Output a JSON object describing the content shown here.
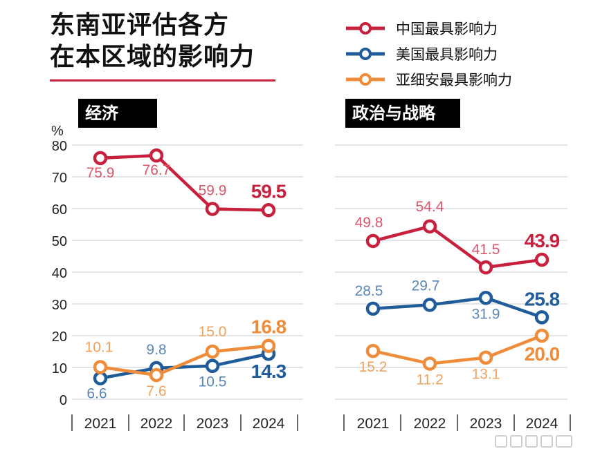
{
  "title_lines": [
    "东南亚评估各方",
    "在本区域的影响力"
  ],
  "colors": {
    "china": "#c8213d",
    "us": "#1f5c99",
    "australia": "#ef8c3a",
    "title_rule": "#c8213d",
    "grid": "#cfd4d9"
  },
  "chart_data": [
    {
      "type": "line",
      "panel_label": "经济",
      "ylabel": "%",
      "yticks": [
        0,
        10,
        20,
        30,
        40,
        50,
        60,
        70,
        80
      ],
      "ylim": [
        0,
        80
      ],
      "grid": true,
      "legend_position": "top-right",
      "x": [
        "2021",
        "2022",
        "2023",
        "2024"
      ],
      "series": [
        {
          "key": "china",
          "name": "中国最具影响力",
          "values": [
            75.9,
            76.7,
            59.9,
            59.5
          ],
          "labels": [
            "75.9",
            "76.7",
            "59.9",
            "59.5"
          ]
        },
        {
          "key": "us",
          "name": "美国最具影响力",
          "values": [
            6.6,
            9.8,
            10.5,
            14.3
          ],
          "labels": [
            "6.6",
            "9.8",
            "10.5",
            "14.3"
          ]
        },
        {
          "key": "australia",
          "name": "亚细安最具影响力",
          "values": [
            10.1,
            7.6,
            15.0,
            16.8
          ],
          "labels": [
            "10.1",
            "7.6",
            "15.0",
            "16.8"
          ]
        }
      ]
    },
    {
      "type": "line",
      "panel_label": "政治与战略",
      "ylim": [
        0,
        80
      ],
      "grid": true,
      "x": [
        "2021",
        "2022",
        "2023",
        "2024"
      ],
      "series": [
        {
          "key": "china",
          "name": "中国最具影响力",
          "values": [
            49.8,
            54.4,
            41.5,
            43.9
          ],
          "labels": [
            "49.8",
            "54.4",
            "41.5",
            "43.9"
          ]
        },
        {
          "key": "us",
          "name": "美国最具影响力",
          "values": [
            28.5,
            29.7,
            31.9,
            25.8
          ],
          "labels": [
            "28.5",
            "29.7",
            "31.9",
            "25.8"
          ]
        },
        {
          "key": "australia",
          "name": "亚细安最具影响力",
          "values": [
            15.2,
            11.2,
            13.1,
            20.0
          ],
          "labels": [
            "15.2",
            "11.2",
            "13.1",
            "20.0"
          ]
        }
      ]
    }
  ]
}
